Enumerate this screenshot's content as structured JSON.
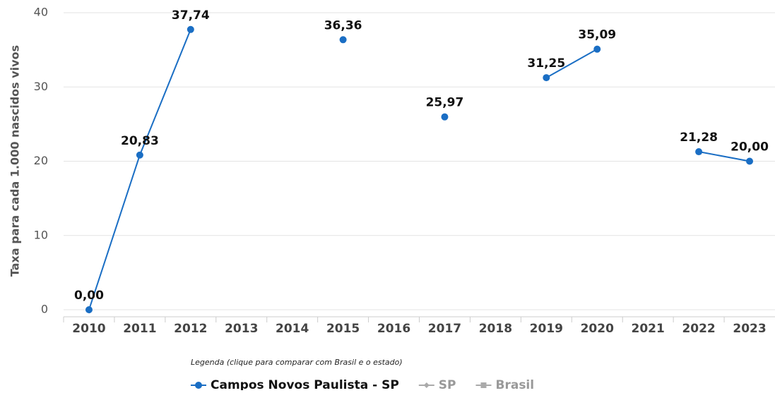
{
  "chart_data": {
    "type": "line",
    "y_label": "Taxa para cada 1.000 nascidos vivos",
    "categories": [
      "2010",
      "2011",
      "2012",
      "2013",
      "2014",
      "2015",
      "2016",
      "2017",
      "2018",
      "2019",
      "2020",
      "2021",
      "2022",
      "2023"
    ],
    "series": [
      {
        "name": "Campos Novos Paulista - SP",
        "color": "#1a6ec4",
        "visible": true,
        "values": [
          0,
          20.83,
          37.74,
          null,
          null,
          36.36,
          null,
          25.97,
          null,
          31.25,
          35.09,
          null,
          21.28,
          20.0
        ],
        "value_labels": [
          "0,00",
          "20,83",
          "37,74",
          null,
          null,
          "36,36",
          null,
          "25,97",
          null,
          "31,25",
          "35,09",
          null,
          "21,28",
          "20,00"
        ]
      },
      {
        "name": "SP",
        "color": "#aaaaaa",
        "visible": false,
        "values": [
          null,
          null,
          null,
          null,
          null,
          null,
          null,
          null,
          null,
          null,
          null,
          null,
          null,
          null
        ]
      },
      {
        "name": "Brasil",
        "color": "#aaaaaa",
        "visible": false,
        "values": [
          null,
          null,
          null,
          null,
          null,
          null,
          null,
          null,
          null,
          null,
          null,
          null,
          null,
          null
        ]
      }
    ],
    "ylim": [
      0,
      40
    ],
    "yticks": [
      0,
      10,
      20,
      30,
      40
    ],
    "grid": true,
    "legend_note": "Legenda (clique para comparar com Brasil e o estado)",
    "legend_position": "bottom"
  }
}
